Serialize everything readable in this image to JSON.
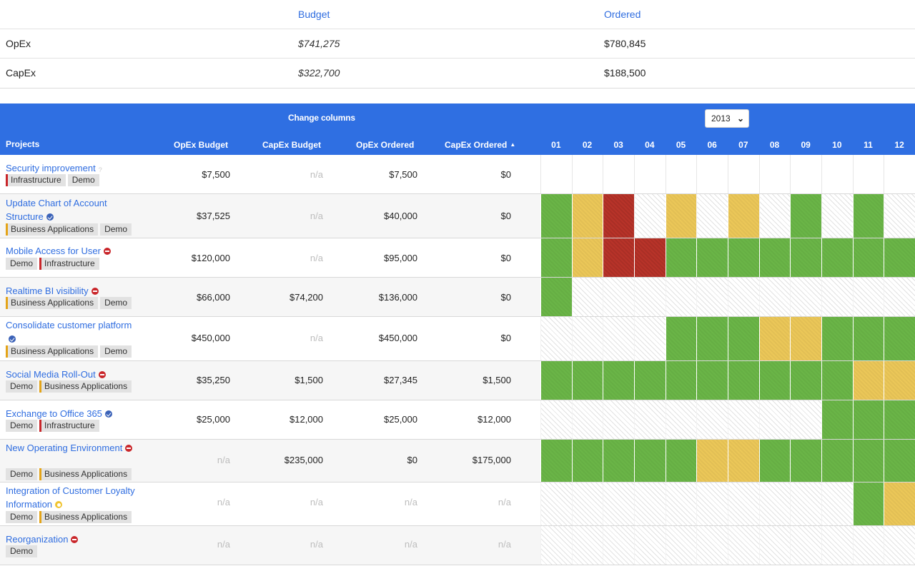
{
  "summary": {
    "headers": {
      "budget": "Budget",
      "ordered": "Ordered"
    },
    "rows": [
      {
        "label": "OpEx",
        "budget": "$741,275",
        "ordered": "$780,845"
      },
      {
        "label": "CapEx",
        "budget": "$322,700",
        "ordered": "$188,500"
      }
    ]
  },
  "table": {
    "change_columns": "Change columns",
    "year": "2013",
    "headers": {
      "projects": "Projects",
      "opex_budget": "OpEx Budget",
      "capex_budget": "CapEx Budget",
      "opex_ordered": "OpEx Ordered",
      "capex_ordered": "CapEx Ordered"
    },
    "sort_icon": "sort-ascending-icon",
    "months": [
      "01",
      "02",
      "03",
      "04",
      "05",
      "06",
      "07",
      "08",
      "09",
      "10",
      "11",
      "12"
    ],
    "colors": {
      "green": "#6ab547",
      "yellow": "#ebc758",
      "red": "#b83329",
      "header_blue": "#2f6fe2",
      "link_blue": "#2f6de0"
    },
    "legend": {
      "g": "green",
      "y": "yellow",
      "r": "red",
      "h": "hatched-none",
      "e": "empty"
    },
    "rows": [
      {
        "name": "Security improvement",
        "status": "help",
        "tags": [
          {
            "label": "Infrastructure",
            "color": "red"
          },
          {
            "label": "Demo",
            "color": ""
          }
        ],
        "opex_budget": "$7,500",
        "capex_budget": "n/a",
        "opex_ordered": "$7,500",
        "capex_ordered": "$0",
        "months": [
          "e",
          "e",
          "e",
          "e",
          "e",
          "e",
          "e",
          "e",
          "e",
          "e",
          "e",
          "e"
        ]
      },
      {
        "name": "Update Chart of Account Structure",
        "status": "blue",
        "tags": [
          {
            "label": "Business Applications",
            "color": "yellow"
          },
          {
            "label": "Demo",
            "color": ""
          }
        ],
        "opex_budget": "$37,525",
        "capex_budget": "n/a",
        "opex_ordered": "$40,000",
        "capex_ordered": "$0",
        "months": [
          "g",
          "y",
          "r",
          "h",
          "y",
          "h",
          "y",
          "h",
          "g",
          "h",
          "g",
          "h"
        ]
      },
      {
        "name": "Mobile Access for User",
        "status": "red",
        "tags": [
          {
            "label": "Demo",
            "color": ""
          },
          {
            "label": "Infrastructure",
            "color": "red"
          }
        ],
        "opex_budget": "$120,000",
        "capex_budget": "n/a",
        "opex_ordered": "$95,000",
        "capex_ordered": "$0",
        "months": [
          "g",
          "y",
          "r",
          "r",
          "g",
          "g",
          "g",
          "g",
          "g",
          "g",
          "g",
          "g"
        ]
      },
      {
        "name": "Realtime BI visibility",
        "status": "red",
        "tags": [
          {
            "label": "Business Applications",
            "color": "yellow"
          },
          {
            "label": "Demo",
            "color": ""
          }
        ],
        "opex_budget": "$66,000",
        "capex_budget": "$74,200",
        "opex_ordered": "$136,000",
        "capex_ordered": "$0",
        "months": [
          "g",
          "h",
          "h",
          "h",
          "h",
          "h",
          "h",
          "h",
          "h",
          "h",
          "h",
          "h"
        ]
      },
      {
        "name": "Consolidate customer platform",
        "status": "blue",
        "tags": [
          {
            "label": "Business Applications",
            "color": "yellow"
          },
          {
            "label": "Demo",
            "color": ""
          }
        ],
        "opex_budget": "$450,000",
        "capex_budget": "n/a",
        "opex_ordered": "$450,000",
        "capex_ordered": "$0",
        "months": [
          "h",
          "h",
          "h",
          "h",
          "g",
          "g",
          "g",
          "y",
          "y",
          "g",
          "g",
          "g"
        ]
      },
      {
        "name": "Social Media Roll-Out",
        "status": "red",
        "tags": [
          {
            "label": "Demo",
            "color": ""
          },
          {
            "label": "Business Applications",
            "color": "yellow"
          }
        ],
        "opex_budget": "$35,250",
        "capex_budget": "$1,500",
        "opex_ordered": "$27,345",
        "capex_ordered": "$1,500",
        "months": [
          "g",
          "g",
          "g",
          "g",
          "g",
          "g",
          "g",
          "g",
          "g",
          "g",
          "y",
          "y"
        ]
      },
      {
        "name": "Exchange to Office 365",
        "status": "blue",
        "tags": [
          {
            "label": "Demo",
            "color": ""
          },
          {
            "label": "Infrastructure",
            "color": "red"
          }
        ],
        "opex_budget": "$25,000",
        "capex_budget": "$12,000",
        "opex_ordered": "$25,000",
        "capex_ordered": "$12,000",
        "months": [
          "h",
          "h",
          "h",
          "h",
          "h",
          "h",
          "h",
          "h",
          "h",
          "g",
          "g",
          "g"
        ]
      },
      {
        "name": "New Operating Environment",
        "status": "red",
        "tags": [
          {
            "label": "Demo",
            "color": ""
          },
          {
            "label": "Business Applications",
            "color": "yellow"
          }
        ],
        "opex_budget": "n/a",
        "capex_budget": "$235,000",
        "opex_ordered": "$0",
        "capex_ordered": "$175,000",
        "months": [
          "g",
          "g",
          "g",
          "g",
          "g",
          "y",
          "y",
          "g",
          "g",
          "g",
          "g",
          "g"
        ]
      },
      {
        "name": "Integration of Customer Loyalty Information",
        "status": "yellow",
        "tags": [
          {
            "label": "Demo",
            "color": ""
          },
          {
            "label": "Business Applications",
            "color": "yellow"
          }
        ],
        "opex_budget": "n/a",
        "capex_budget": "n/a",
        "opex_ordered": "n/a",
        "capex_ordered": "n/a",
        "months": [
          "h",
          "h",
          "h",
          "h",
          "h",
          "h",
          "h",
          "h",
          "h",
          "h",
          "g",
          "y"
        ]
      },
      {
        "name": "Reorganization",
        "status": "red",
        "tags": [
          {
            "label": "Demo",
            "color": ""
          }
        ],
        "opex_budget": "n/a",
        "capex_budget": "n/a",
        "opex_ordered": "n/a",
        "capex_ordered": "n/a",
        "months": [
          "h",
          "h",
          "h",
          "h",
          "h",
          "h",
          "h",
          "h",
          "h",
          "h",
          "h",
          "h"
        ]
      }
    ]
  }
}
